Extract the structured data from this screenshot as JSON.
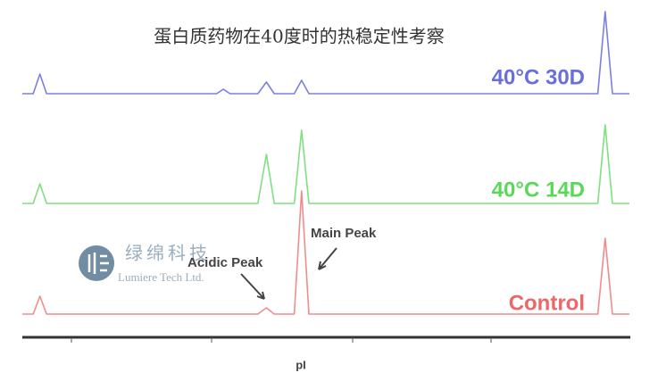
{
  "chart_data": {
    "type": "line",
    "title": "蛋白质药物在40度时的热稳定性考察",
    "x_label": "pI",
    "x": [
      0,
      1.8,
      2.9,
      4.0,
      32,
      33.1,
      34.2,
      38.8,
      40.2,
      41.5,
      44.8,
      46.0,
      47.2,
      94.8,
      96.0,
      97.2,
      100
    ],
    "xlim": [
      0,
      100
    ],
    "ylim": [
      0,
      150
    ],
    "series": [
      {
        "name": "40°C 30D",
        "color": "#7b7fe2",
        "values": [
          0,
          0,
          22,
          0,
          0,
          5,
          0,
          0,
          13,
          0,
          0,
          15,
          0,
          0,
          92,
          0,
          0
        ]
      },
      {
        "name": "40°C 14D",
        "color": "#7fe07f",
        "values": [
          0,
          0,
          22,
          0,
          0,
          0,
          0,
          0,
          55,
          0,
          0,
          82,
          0,
          0,
          88,
          0,
          0
        ]
      },
      {
        "name": "Control",
        "color": "#f08c8c",
        "values": [
          0,
          0,
          20,
          0,
          0,
          0,
          0,
          0,
          7,
          0,
          0,
          138,
          0,
          0,
          85,
          0,
          0
        ]
      }
    ],
    "label_colors": [
      "#6b6fd8",
      "#5ad85a",
      "#ee6666"
    ],
    "annotations": [
      "Main Peak",
      "Acidic Peak"
    ],
    "watermark": [
      "绿绵科技",
      "Lumiere Tech Ltd."
    ]
  }
}
